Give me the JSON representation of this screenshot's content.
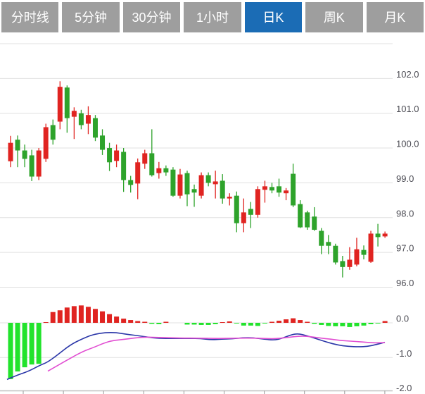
{
  "tabs": {
    "active_index": 4,
    "items": [
      {
        "id": "minute-line",
        "label": "分时线"
      },
      {
        "id": "5min",
        "label": "5分钟"
      },
      {
        "id": "30min",
        "label": "30分钟"
      },
      {
        "id": "1hour",
        "label": "1小时"
      },
      {
        "id": "daily-k",
        "label": "日K"
      },
      {
        "id": "weekly-k",
        "label": "周K"
      },
      {
        "id": "monthly-k",
        "label": "月K"
      }
    ]
  },
  "colors": {
    "tab_bg": "#9e9e9e",
    "tab_active_bg": "#1b6cb5",
    "tab_text": "#ffffff",
    "up": "#e02421",
    "down": "#2ea32b",
    "macd_up": "#e02421",
    "macd_down": "#22e32c",
    "dif_line": "#2a36a8",
    "dea_line": "#e14ed2",
    "grid": "#e0e0e0",
    "axis_line": "#c0c0c0",
    "tick": "#9a9a9a",
    "axis_label": "#4a4a52"
  },
  "chart_data": {
    "type": "candlestick",
    "note": "Daily K-line with MACD sub-panel. Chinese convention: red = close>open (up), green = close<open (down).",
    "panels": [
      {
        "type": "candlestick",
        "ylim": [
          95.9,
          103.0
        ],
        "y_axis_labels": [
          {
            "text": "102.0",
            "value": 102.0
          },
          {
            "text": "101.0",
            "value": 101.0
          },
          {
            "text": "100.0",
            "value": 100.0
          },
          {
            "text": "99.0",
            "value": 99.0
          },
          {
            "text": "98.0",
            "value": 98.0
          },
          {
            "text": "97.0",
            "value": 97.0
          },
          {
            "text": "96.0",
            "value": 96.0
          }
        ],
        "gridline_values": [
          103,
          102,
          101,
          100,
          99,
          98,
          97,
          96
        ],
        "candles_ohlc": [
          [
            99.62,
            100.35,
            99.45,
            100.15
          ],
          [
            100.24,
            100.36,
            99.45,
            99.93
          ],
          [
            99.93,
            100.1,
            99.45,
            99.69
          ],
          [
            99.79,
            99.95,
            99.05,
            99.18
          ],
          [
            99.18,
            100.0,
            99.08,
            99.93
          ],
          [
            99.69,
            100.7,
            99.6,
            100.6
          ],
          [
            100.66,
            100.82,
            100.1,
            100.24
          ],
          [
            100.76,
            101.92,
            100.54,
            101.76
          ],
          [
            101.74,
            101.8,
            100.44,
            100.86
          ],
          [
            100.9,
            101.17,
            100.26,
            101.07
          ],
          [
            101.0,
            101.1,
            100.54,
            100.66
          ],
          [
            100.7,
            101.2,
            100.4,
            100.95
          ],
          [
            100.86,
            100.95,
            100.2,
            100.3
          ],
          [
            100.36,
            100.54,
            99.8,
            99.95
          ],
          [
            100.0,
            100.15,
            99.34,
            99.59
          ],
          [
            99.63,
            100.1,
            99.45,
            99.93
          ],
          [
            99.89,
            100.0,
            98.74,
            99.08
          ],
          [
            99.08,
            99.2,
            98.72,
            98.94
          ],
          [
            98.98,
            99.7,
            98.53,
            99.59
          ],
          [
            99.55,
            99.95,
            99.4,
            99.85
          ],
          [
            99.85,
            100.54,
            99.18,
            99.22
          ],
          [
            99.28,
            99.6,
            99.12,
            99.42
          ],
          [
            99.42,
            99.5,
            99.2,
            99.3
          ],
          [
            99.38,
            99.45,
            98.6,
            98.63
          ],
          [
            98.63,
            99.4,
            98.55,
            99.24
          ],
          [
            99.28,
            99.35,
            98.33,
            98.67
          ],
          [
            98.82,
            98.95,
            98.31,
            98.72
          ],
          [
            98.63,
            99.3,
            98.55,
            99.22
          ],
          [
            99.22,
            99.3,
            98.9,
            99.0
          ],
          [
            98.96,
            99.35,
            98.55,
            99.04
          ],
          [
            99.06,
            99.25,
            98.4,
            98.55
          ],
          [
            98.55,
            98.7,
            98.35,
            98.6
          ],
          [
            98.63,
            98.75,
            97.58,
            97.84
          ],
          [
            97.84,
            98.55,
            97.58,
            98.15
          ],
          [
            98.25,
            98.45,
            97.7,
            98.08
          ],
          [
            98.08,
            98.9,
            98.0,
            98.82
          ],
          [
            98.8,
            99.06,
            98.43,
            98.9
          ],
          [
            98.88,
            99.0,
            98.7,
            98.78
          ],
          [
            98.9,
            99.12,
            98.6,
            98.72
          ],
          [
            98.7,
            98.85,
            98.5,
            98.78
          ],
          [
            99.26,
            99.55,
            98.3,
            98.35
          ],
          [
            98.39,
            98.5,
            97.7,
            97.72
          ],
          [
            98.15,
            98.2,
            97.65,
            97.72
          ],
          [
            98.03,
            98.3,
            97.62,
            97.65
          ],
          [
            97.62,
            97.7,
            96.95,
            97.19
          ],
          [
            97.3,
            97.5,
            96.95,
            97.19
          ],
          [
            97.19,
            97.25,
            96.65,
            96.71
          ],
          [
            96.75,
            96.9,
            96.28,
            96.58
          ],
          [
            96.58,
            97.15,
            96.5,
            96.79
          ],
          [
            96.65,
            97.42,
            96.6,
            97.09
          ],
          [
            97.07,
            97.2,
            96.8,
            96.93
          ],
          [
            96.73,
            97.62,
            96.7,
            97.54
          ],
          [
            97.54,
            97.82,
            97.17,
            97.44
          ],
          [
            97.46,
            97.6,
            97.42,
            97.54
          ]
        ]
      },
      {
        "type": "macd",
        "ylim": [
          -2.0,
          0.55
        ],
        "y_axis_labels": [
          {
            "text": "0.0",
            "value": 0.0
          },
          {
            "text": "-1.0",
            "value": -1.0
          },
          {
            "text": "-2.0",
            "value": -2.0
          }
        ],
        "histogram": [
          -1.62,
          -1.4,
          -1.28,
          -1.2,
          -1.18,
          0.02,
          0.31,
          0.36,
          0.44,
          0.48,
          0.5,
          0.46,
          0.4,
          0.33,
          0.25,
          0.18,
          0.12,
          0.08,
          0.05,
          0.03,
          -0.03,
          -0.04,
          0.03,
          -0.01,
          -0.01,
          -0.05,
          -0.05,
          -0.06,
          -0.06,
          -0.04,
          0.02,
          0.04,
          -0.02,
          -0.08,
          -0.08,
          -0.09,
          -0.02,
          0.03,
          0.06,
          0.1,
          0.13,
          0.08,
          0.03,
          -0.03,
          -0.06,
          -0.09,
          -0.1,
          -0.1,
          -0.12,
          -0.1,
          -0.08,
          -0.04,
          -0.02,
          0.05
        ],
        "dif_line_points": [
          [
            10,
            -1.63
          ],
          [
            25,
            -1.5
          ],
          [
            40,
            -1.4
          ],
          [
            57,
            -1.22
          ],
          [
            67,
            -1.14
          ],
          [
            80,
            -0.95
          ],
          [
            100,
            -0.63
          ],
          [
            118,
            -0.45
          ],
          [
            133,
            -0.33
          ],
          [
            150,
            -0.28
          ],
          [
            165,
            -0.28
          ],
          [
            180,
            -0.33
          ],
          [
            200,
            -0.38
          ],
          [
            215,
            -0.43
          ],
          [
            230,
            -0.45
          ],
          [
            250,
            -0.45
          ],
          [
            270,
            -0.45
          ],
          [
            285,
            -0.45
          ],
          [
            300,
            -0.49
          ],
          [
            315,
            -0.47
          ],
          [
            330,
            -0.46
          ],
          [
            345,
            -0.43
          ],
          [
            360,
            -0.43
          ],
          [
            375,
            -0.47
          ],
          [
            390,
            -0.5
          ],
          [
            402,
            -0.44
          ],
          [
            414,
            -0.34
          ],
          [
            424,
            -0.31
          ],
          [
            436,
            -0.37
          ],
          [
            450,
            -0.46
          ],
          [
            465,
            -0.56
          ],
          [
            480,
            -0.64
          ],
          [
            495,
            -0.68
          ],
          [
            510,
            -0.69
          ],
          [
            522,
            -0.68
          ],
          [
            534,
            -0.63
          ],
          [
            547,
            -0.56
          ]
        ],
        "dea_line_points": [
          [
            68,
            -1.39
          ],
          [
            80,
            -1.25
          ],
          [
            100,
            -1.02
          ],
          [
            118,
            -0.82
          ],
          [
            133,
            -0.71
          ],
          [
            148,
            -0.58
          ],
          [
            160,
            -0.51
          ],
          [
            175,
            -0.48
          ],
          [
            190,
            -0.44
          ],
          [
            205,
            -0.41
          ],
          [
            220,
            -0.42
          ],
          [
            240,
            -0.43
          ],
          [
            260,
            -0.44
          ],
          [
            280,
            -0.44
          ],
          [
            300,
            -0.45
          ],
          [
            320,
            -0.45
          ],
          [
            340,
            -0.44
          ],
          [
            360,
            -0.44
          ],
          [
            375,
            -0.45
          ],
          [
            390,
            -0.46
          ],
          [
            405,
            -0.43
          ],
          [
            418,
            -0.4
          ],
          [
            430,
            -0.38
          ],
          [
            442,
            -0.4
          ],
          [
            455,
            -0.44
          ],
          [
            470,
            -0.47
          ],
          [
            485,
            -0.51
          ],
          [
            500,
            -0.53
          ],
          [
            515,
            -0.55
          ],
          [
            530,
            -0.58
          ],
          [
            547,
            -0.57
          ]
        ]
      }
    ]
  }
}
